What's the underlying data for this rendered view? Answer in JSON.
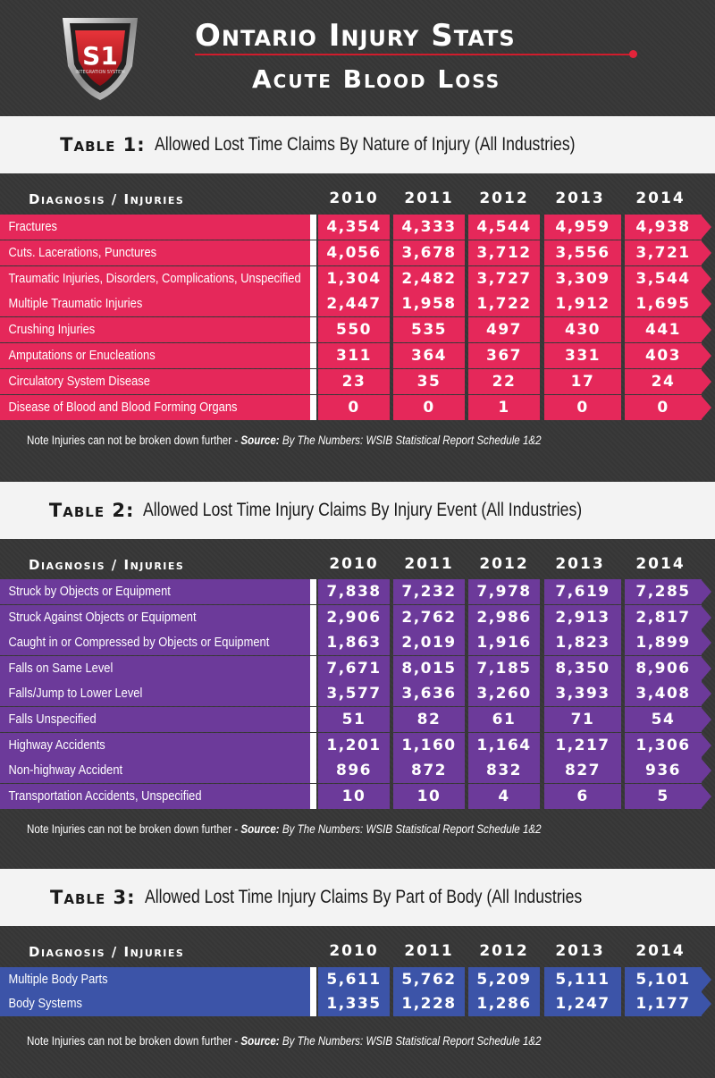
{
  "header": {
    "logo_text": "S1",
    "logo_sub": "INTEGRATION SYSTEM",
    "title": "Ontario Injury Stats",
    "subtitle": "Acute Blood Loss"
  },
  "column_header": "Diagnosis / Injuries",
  "years": [
    "2010",
    "2011",
    "2012",
    "2013",
    "2014"
  ],
  "note": {
    "text": "Note Injuries can not be broken down further - ",
    "source_label": "Source:",
    "source_text": " By The Numbers: WSIB Statistical Report Schedule 1&2"
  },
  "colors": {
    "table1": "#e5285a",
    "table2": "#6c3a9a",
    "table3": "#3c54a8"
  },
  "tables": [
    {
      "label": "Table 1:",
      "title": "Allowed Lost Time Claims By Nature of Injury (All Industries)",
      "rows": [
        {
          "name": "Fractures",
          "values": [
            "4,354",
            "4,333",
            "4,544",
            "4,959",
            "4,938"
          ]
        },
        {
          "name": "Cuts. Lacerations, Punctures",
          "values": [
            "4,056",
            "3,678",
            "3,712",
            "3,556",
            "3,721"
          ]
        },
        {
          "name": "Traumatic Injuries, Disorders, Complications, Unspecified",
          "values": [
            "1,304",
            "2,482",
            "3,727",
            "3,309",
            "3,544"
          ]
        },
        {
          "name": "Multiple Traumatic Injuries",
          "values": [
            "2,447",
            "1,958",
            "1,722",
            "1,912",
            "1,695"
          ]
        },
        {
          "name": "Crushing Injuries",
          "values": [
            "550",
            "535",
            "497",
            "430",
            "441"
          ]
        },
        {
          "name": "Amputations or Enucleations",
          "values": [
            "311",
            "364",
            "367",
            "331",
            "403"
          ]
        },
        {
          "name": "Circulatory System Disease",
          "values": [
            "23",
            "35",
            "22",
            "17",
            "24"
          ]
        },
        {
          "name": "Disease of Blood and Blood Forming Organs",
          "values": [
            "0",
            "0",
            "1",
            "0",
            "0"
          ]
        }
      ]
    },
    {
      "label": "Table 2:",
      "title": "Allowed Lost Time Injury Claims By Injury Event (All Industries)",
      "rows": [
        {
          "name": "Struck by Objects or Equipment",
          "values": [
            "7,838",
            "7,232",
            "7,978",
            "7,619",
            "7,285"
          ]
        },
        {
          "name": "Struck Against Objects or Equipment",
          "values": [
            "2,906",
            "2,762",
            "2,986",
            "2,913",
            "2,817"
          ]
        },
        {
          "name": "Caught in or Compressed by Objects or Equipment",
          "values": [
            "1,863",
            "2,019",
            "1,916",
            "1,823",
            "1,899"
          ]
        },
        {
          "name": "Falls on Same Level",
          "values": [
            "7,671",
            "8,015",
            "7,185",
            "8,350",
            "8,906"
          ]
        },
        {
          "name": "Falls/Jump to Lower Level",
          "values": [
            "3,577",
            "3,636",
            "3,260",
            "3,393",
            "3,408"
          ]
        },
        {
          "name": "Falls Unspecified",
          "values": [
            "51",
            "82",
            "61",
            "71",
            "54"
          ]
        },
        {
          "name": "Highway Accidents",
          "values": [
            "1,201",
            "1,160",
            "1,164",
            "1,217",
            "1,306"
          ]
        },
        {
          "name": "Non-highway Accident",
          "values": [
            "896",
            "872",
            "832",
            "827",
            "936"
          ]
        },
        {
          "name": "Transportation Accidents, Unspecified",
          "values": [
            "10",
            "10",
            "4",
            "6",
            "5"
          ]
        }
      ]
    },
    {
      "label": "Table 3:",
      "title": "Allowed Lost Time Injury Claims By Part of Body (All Industries",
      "rows": [
        {
          "name": "Multiple Body Parts",
          "values": [
            "5,611",
            "5,762",
            "5,209",
            "5,111",
            "5,101"
          ]
        },
        {
          "name": "Body Systems",
          "values": [
            "1,335",
            "1,228",
            "1,286",
            "1,247",
            "1,177"
          ]
        }
      ]
    }
  ]
}
